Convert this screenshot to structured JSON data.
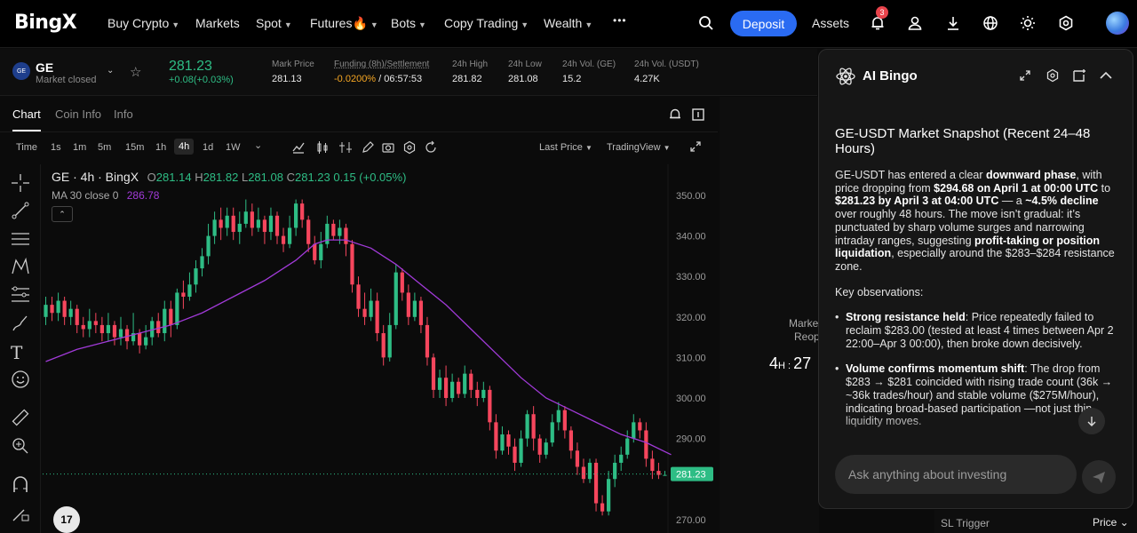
{
  "nav": {
    "logo": "BingX",
    "items": [
      {
        "label": "Buy Crypto",
        "caret": true
      },
      {
        "label": "Markets",
        "caret": false
      },
      {
        "label": "Spot",
        "caret": true
      },
      {
        "label": "Futures🔥",
        "caret": true
      },
      {
        "label": "Bots",
        "caret": true
      },
      {
        "label": "Copy Trading",
        "caret": true
      },
      {
        "label": "Wealth",
        "caret": true
      }
    ],
    "more": "•••",
    "deposit": "Deposit",
    "assets": "Assets",
    "notification_count": "3",
    "icons": [
      "search-icon",
      "bell-icon",
      "user-icon",
      "download-icon",
      "globe-icon",
      "sun-icon",
      "settings-icon"
    ]
  },
  "ticker": {
    "symbol": "GE",
    "status": "Market closed",
    "price": "281.23",
    "change": "+0.08(+0.03%)",
    "stats": [
      {
        "label": "Mark Price",
        "value": "281.13"
      },
      {
        "label": "Funding (8h)/Settlement",
        "value_a": "-0.0200%",
        "value_b": " / 06:57:53"
      },
      {
        "label": "24h High",
        "value": "281.82"
      },
      {
        "label": "24h Low",
        "value": "281.08"
      },
      {
        "label": "24h Vol. (GE)",
        "value": "15.2"
      },
      {
        "label": "24h Vol. (USDT)",
        "value": "4.27K"
      }
    ]
  },
  "chart_tabs": [
    "Chart",
    "Coin Info",
    "Info"
  ],
  "timeframes": [
    "Time",
    "1s",
    "1m",
    "5m",
    "15m",
    "1h",
    "4h",
    "1d",
    "1W"
  ],
  "active_timeframe": "4h",
  "price_type": "Last Price",
  "view_type": "TradingView",
  "chart_header": {
    "title": "GE · 4h · BingX",
    "o": "281.14",
    "h": "281.82",
    "l": "281.08",
    "c": "281.23",
    "chg": "0.15 (+0.05%)",
    "ma_label": "MA 30 close 0",
    "ma_value": "286.78"
  },
  "chart_data": {
    "type": "candlestick",
    "ylim": [
      267,
      355
    ],
    "yticks": [
      "350.00",
      "340.00",
      "330.00",
      "320.00",
      "310.00",
      "300.00",
      "290.00",
      "270.00"
    ],
    "last_price_label": "281.23",
    "colors": {
      "up": "#2ebd85",
      "down": "#f6465d",
      "ma": "#a13ad8"
    },
    "candles": [
      [
        320,
        323,
        325,
        318
      ],
      [
        323,
        321,
        325,
        319
      ],
      [
        321,
        324,
        326,
        319
      ],
      [
        324,
        320,
        325,
        318
      ],
      [
        320,
        322,
        324,
        318
      ],
      [
        322,
        318,
        323,
        316
      ],
      [
        318,
        317,
        320,
        315
      ],
      [
        317,
        319,
        322,
        315
      ],
      [
        319,
        318,
        321,
        316
      ],
      [
        318,
        316,
        320,
        314
      ],
      [
        316,
        318,
        321,
        314
      ],
      [
        318,
        315,
        319,
        313
      ],
      [
        315,
        317,
        320,
        313
      ],
      [
        317,
        314,
        318,
        312
      ],
      [
        314,
        316,
        321,
        313
      ],
      [
        316,
        313,
        317,
        311
      ],
      [
        313,
        315,
        318,
        312
      ],
      [
        315,
        319,
        320,
        313
      ],
      [
        319,
        316,
        321,
        315
      ],
      [
        316,
        322,
        324,
        314
      ],
      [
        322,
        318,
        324,
        315
      ],
      [
        318,
        326,
        327,
        317
      ],
      [
        326,
        325,
        329,
        322
      ],
      [
        325,
        328,
        331,
        324
      ],
      [
        328,
        332,
        334,
        326
      ],
      [
        332,
        335,
        337,
        330
      ],
      [
        335,
        340,
        343,
        333
      ],
      [
        340,
        344,
        346,
        338
      ],
      [
        344,
        342,
        347,
        339
      ],
      [
        342,
        345,
        347,
        340
      ],
      [
        345,
        341,
        347,
        339
      ],
      [
        341,
        343,
        346,
        338
      ],
      [
        343,
        346,
        349,
        342
      ],
      [
        346,
        342,
        348,
        340
      ],
      [
        342,
        344,
        347,
        341
      ],
      [
        344,
        341,
        345,
        338
      ],
      [
        341,
        345,
        347,
        339
      ],
      [
        345,
        340,
        346,
        338
      ],
      [
        340,
        338,
        342,
        336
      ],
      [
        338,
        342,
        345,
        337
      ],
      [
        342,
        348,
        349,
        340
      ],
      [
        348,
        344,
        349,
        342
      ],
      [
        344,
        338,
        345,
        336
      ],
      [
        338,
        334,
        340,
        333
      ],
      [
        334,
        338,
        341,
        332
      ],
      [
        338,
        343,
        345,
        337
      ],
      [
        343,
        340,
        344,
        339
      ],
      [
        340,
        342,
        344,
        338
      ],
      [
        342,
        338,
        343,
        335
      ],
      [
        338,
        328,
        339,
        326
      ],
      [
        328,
        322,
        330,
        320
      ],
      [
        322,
        320,
        326,
        318
      ],
      [
        320,
        324,
        327,
        319
      ],
      [
        324,
        316,
        326,
        314
      ],
      [
        316,
        310,
        318,
        308
      ],
      [
        310,
        318,
        321,
        309
      ],
      [
        318,
        331,
        333,
        317
      ],
      [
        331,
        326,
        332,
        324
      ],
      [
        326,
        320,
        328,
        318
      ],
      [
        320,
        324,
        326,
        319
      ],
      [
        324,
        318,
        325,
        316
      ],
      [
        318,
        310,
        320,
        308
      ],
      [
        310,
        302,
        311,
        300
      ],
      [
        302,
        305,
        307,
        300
      ],
      [
        305,
        300,
        308,
        298
      ],
      [
        300,
        304,
        306,
        299
      ],
      [
        304,
        301,
        305,
        300
      ],
      [
        301,
        306,
        308,
        300
      ],
      [
        306,
        302,
        307,
        300
      ],
      [
        302,
        300,
        304,
        298
      ],
      [
        300,
        302,
        304,
        299
      ],
      [
        302,
        294,
        303,
        292
      ],
      [
        294,
        287,
        296,
        285
      ],
      [
        287,
        291,
        293,
        286
      ],
      [
        291,
        288,
        292,
        286
      ],
      [
        288,
        284,
        290,
        282
      ],
      [
        284,
        290,
        292,
        283
      ],
      [
        290,
        296,
        297,
        288
      ],
      [
        296,
        290,
        298,
        287
      ],
      [
        290,
        286,
        291,
        284
      ],
      [
        286,
        289,
        290,
        285
      ],
      [
        289,
        294,
        296,
        288
      ],
      [
        294,
        297,
        299,
        292
      ],
      [
        297,
        292,
        298,
        290
      ],
      [
        292,
        287,
        293,
        285
      ],
      [
        287,
        283,
        289,
        281
      ],
      [
        283,
        280,
        285,
        279
      ],
      [
        280,
        284,
        285,
        279
      ],
      [
        284,
        274,
        285,
        272
      ],
      [
        274,
        272,
        276,
        271
      ],
      [
        272,
        280,
        282,
        271
      ],
      [
        280,
        284,
        286,
        278
      ],
      [
        284,
        286,
        288,
        282
      ],
      [
        286,
        290,
        292,
        285
      ],
      [
        290,
        294,
        296,
        289
      ],
      [
        294,
        292,
        295,
        290
      ],
      [
        292,
        285,
        294,
        283
      ],
      [
        285,
        282,
        287,
        280
      ],
      [
        282,
        281,
        284,
        280
      ],
      [
        281,
        281,
        282,
        281
      ]
    ],
    "ma30": [
      [
        0,
        309
      ],
      [
        5,
        312
      ],
      [
        10,
        314
      ],
      [
        15,
        316
      ],
      [
        20,
        318
      ],
      [
        25,
        321
      ],
      [
        30,
        325
      ],
      [
        35,
        329
      ],
      [
        40,
        334
      ],
      [
        43,
        338
      ],
      [
        45,
        339
      ],
      [
        48,
        339
      ],
      [
        52,
        337
      ],
      [
        56,
        333
      ],
      [
        60,
        328
      ],
      [
        64,
        323
      ],
      [
        68,
        317
      ],
      [
        72,
        311
      ],
      [
        76,
        305
      ],
      [
        80,
        300
      ],
      [
        84,
        297
      ],
      [
        88,
        294
      ],
      [
        92,
        291
      ],
      [
        96,
        289
      ],
      [
        100,
        286
      ]
    ]
  },
  "ai_panel": {
    "title": "AI Bingo",
    "heading": "GE-USDT Market Snapshot (Recent 24–48 Hours)",
    "intro": [
      {
        "t": "GE-USDT has entered a clear "
      },
      {
        "t": "downward phase",
        "b": true
      },
      {
        "t": ", with price dropping from "
      },
      {
        "t": "$294.68 on April 1 at 00:00 UTC",
        "b": true
      },
      {
        "t": " to "
      },
      {
        "t": "$281.23 by April 3 at 04:00 UTC",
        "b": true
      },
      {
        "t": " — a "
      },
      {
        "t": "~4.5% decline",
        "b": true
      },
      {
        "t": " over roughly 48 hours. The move isn’t gradual: it’s punctuated by sharp volume surges and narrowing intraday ranges, suggesting "
      },
      {
        "t": "profit-taking or position liquidation",
        "b": true
      },
      {
        "t": ", especially around the $283–$284 resistance zone."
      }
    ],
    "key_obs": "Key observations:",
    "bullets": [
      [
        {
          "t": "Strong resistance held",
          "b": true
        },
        {
          "t": ": Price repeatedly failed to reclaim $283.00 (tested at least 4 times between Apr 2 22:00–Apr 3 00:00), then broke down decisively."
        }
      ],
      [
        {
          "t": "Volume confirms momentum shift",
          "b": true
        },
        {
          "t": ": The drop from $283 → $281 coincided with rising trade count (36k → ~36k trades/hour) and stable volume ($275M/hour), indicating broad-based participation —not just thin liquidity moves."
        }
      ]
    ],
    "ask_placeholder": "Ask anything about investing"
  },
  "side": {
    "market_label": "Market",
    "reopen_label": "Reop",
    "countdown_h": "4",
    "countdown_rest": "27",
    "sl_trigger": "SL Trigger",
    "sl_price": "Price"
  }
}
